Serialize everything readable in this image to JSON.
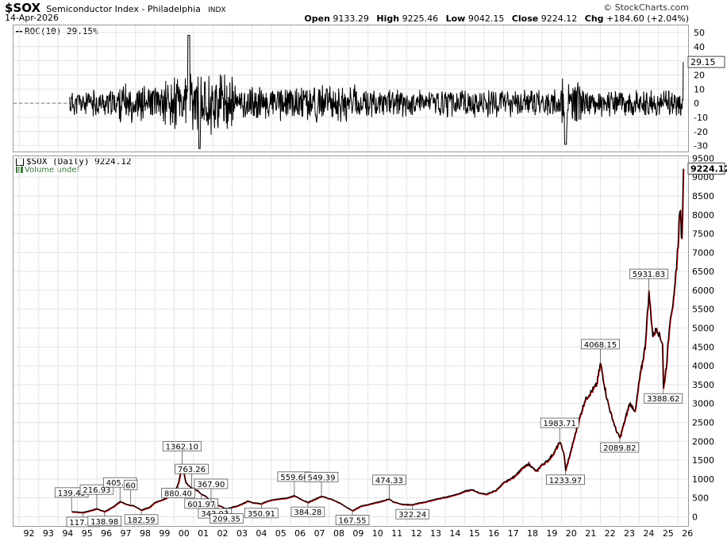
{
  "header": {
    "symbol": "$SOX",
    "name": "Semiconductor Index - Philadelphia",
    "exchange": "INDX",
    "date": "14-Apr-2026",
    "brand": "© StockCharts.com",
    "open_label": "Open",
    "open_value": "9133.29",
    "high_label": "High",
    "high_value": "9225.46",
    "low_label": "Low",
    "low_value": "9042.15",
    "close_label": "Close",
    "close_value": "9224.12",
    "chg_label": "Chg",
    "chg_value": "+184.60 (+2.04%)"
  },
  "roc_panel": {
    "title": "ROC(10) 29.15%",
    "last_label": "29.15"
  },
  "price_panel": {
    "title": "$SOX (Daily) 9224.12",
    "volume_label": "Volume undef",
    "last_label": "9224.12"
  },
  "chart_data": [
    {
      "type": "line",
      "title": "ROC(10) 29.15%",
      "ylim": [
        -33,
        55
      ],
      "yticks": [
        -30,
        -20,
        -10,
        0,
        10,
        20,
        30,
        40,
        50
      ],
      "last_value": 29.15,
      "series": [
        {
          "name": "ROC(10)",
          "approx_range": [
            -32,
            48
          ]
        }
      ]
    },
    {
      "type": "line",
      "title": "$SOX (Daily) 9224.12",
      "xlabel": "",
      "ylabel": "",
      "ylim": [
        -200,
        9550
      ],
      "yticks": [
        0,
        500,
        1000,
        1500,
        2000,
        2500,
        3000,
        3500,
        4000,
        4500,
        5000,
        5500,
        6000,
        6500,
        7000,
        7500,
        8000,
        8500,
        9000,
        9500
      ],
      "xticks": [
        "92",
        "93",
        "94",
        "95",
        "96",
        "97",
        "98",
        "99",
        "00",
        "01",
        "02",
        "03",
        "04",
        "05",
        "06",
        "07",
        "08",
        "09",
        "10",
        "11",
        "12",
        "13",
        "14",
        "15",
        "16",
        "17",
        "18",
        "19",
        "20",
        "21",
        "22",
        "23",
        "24",
        "25",
        "26"
      ],
      "series": [
        {
          "x": [
            1994.7,
            1995.3,
            1995.7,
            1996.0,
            1996.4,
            1996.8,
            1997.2,
            1997.6,
            1997.9,
            1998.3,
            1998.7,
            1999.0,
            1999.4,
            1999.8,
            2000.1,
            2000.2,
            2000.4,
            2000.6,
            2000.9,
            2001.2,
            2001.4,
            2001.7,
            2001.9,
            2002.1,
            2002.4,
            2002.7,
            2002.8,
            2003.3,
            2003.8,
            2004.0,
            2004.5,
            2004.8,
            2005.3,
            2005.8,
            2006.2,
            2006.6,
            2006.9,
            2007.3,
            2007.6,
            2008.2,
            2008.6,
            2008.9,
            2009.2,
            2009.6,
            2010.2,
            2010.6,
            2011.1,
            2011.3,
            2011.8,
            2012.3,
            2012.6,
            2013.0,
            2013.6,
            2014.0,
            2014.6,
            2015.0,
            2015.4,
            2015.7,
            2016.1,
            2016.6,
            2017.0,
            2017.5,
            2018.0,
            2018.3,
            2018.7,
            2018.9,
            2019.3,
            2019.6,
            2019.9,
            2020.1,
            2020.2,
            2020.5,
            2020.8,
            2021.2,
            2021.5,
            2021.8,
            2022.0,
            2022.3,
            2022.5,
            2022.8,
            2023.0,
            2023.5,
            2023.8,
            2024.0,
            2024.3,
            2024.5,
            2024.7,
            2024.9,
            2025.2,
            2025.25,
            2025.4,
            2025.6,
            2025.8,
            2025.9,
            2026.0,
            2026.1,
            2026.2,
            2026.28
          ],
          "y": [
            139.49,
            117.44,
            170,
            216.93,
            138.98,
            250,
            405.48,
            320,
            300,
            182.59,
            250,
            380,
            450,
            550,
            760,
            880.4,
            1362.1,
            900,
            763.26,
            700,
            601.97,
            520,
            367.9,
            343.93,
            280,
            209.35,
            230,
            300,
            420,
            380,
            350.91,
            420,
            470,
            500,
            559.6,
            450,
            384.28,
            480,
            549.39,
            450,
            350,
            250,
            167.55,
            280,
            350,
            400,
            474.33,
            400,
            330,
            322.24,
            360,
            400,
            480,
            520,
            600,
            680,
            720,
            640,
            600,
            700,
            900,
            1050,
            1300,
            1400,
            1200,
            1350,
            1500,
            1700,
            1983.71,
            1700,
            1233.97,
            1800,
            2400,
            3100,
            3300,
            3500,
            4068.15,
            3200,
            2800,
            2300,
            2089.82,
            3000,
            2800,
            3600,
            4500,
            5931.83,
            4800,
            5000,
            4600,
            3388.62,
            4000,
            5300,
            5800,
            6500,
            7200,
            8200,
            7300,
            9224.12
          ]
        }
      ],
      "annotations": [
        {
          "x": 1994.7,
          "y": 139.49,
          "text": "139.49",
          "dir": "up"
        },
        {
          "x": 1995.3,
          "y": 117.44,
          "text": "117.44",
          "dir": "down"
        },
        {
          "x": 1996.0,
          "y": 216.93,
          "text": "216.93",
          "dir": "up"
        },
        {
          "x": 1996.4,
          "y": 138.98,
          "text": "138.98",
          "dir": "down"
        },
        {
          "x": 1997.2,
          "y": 405.48,
          "text": "405.48",
          "dir": "up"
        },
        {
          "x": 1997.75,
          "y": 340,
          "text": "60",
          "dir": "up"
        },
        {
          "x": 1998.3,
          "y": 182.59,
          "text": "182.59",
          "dir": "down"
        },
        {
          "x": 2000.4,
          "y": 1362.1,
          "text": "1362.10",
          "dir": "up"
        },
        {
          "x": 2000.2,
          "y": 880.4,
          "text": "880.40",
          "dir": "down"
        },
        {
          "x": 2000.9,
          "y": 763.26,
          "text": "763.26",
          "dir": "up"
        },
        {
          "x": 2001.4,
          "y": 601.97,
          "text": "601.97",
          "dir": "down"
        },
        {
          "x": 2001.9,
          "y": 367.9,
          "text": "367.90",
          "dir": "up"
        },
        {
          "x": 2002.1,
          "y": 343.93,
          "text": "343.93",
          "dir": "down"
        },
        {
          "x": 2002.7,
          "y": 209.35,
          "text": "209.35",
          "dir": "down"
        },
        {
          "x": 2004.5,
          "y": 350.91,
          "text": "350.91",
          "dir": "down"
        },
        {
          "x": 2006.2,
          "y": 559.6,
          "text": "559.60",
          "dir": "up"
        },
        {
          "x": 2006.9,
          "y": 384.28,
          "text": "384.28",
          "dir": "down"
        },
        {
          "x": 2007.6,
          "y": 549.39,
          "text": "549.39",
          "dir": "up"
        },
        {
          "x": 2009.2,
          "y": 167.55,
          "text": "167.55",
          "dir": "down"
        },
        {
          "x": 2011.1,
          "y": 474.33,
          "text": "474.33",
          "dir": "up"
        },
        {
          "x": 2012.3,
          "y": 322.24,
          "text": "322.24",
          "dir": "down"
        },
        {
          "x": 2019.9,
          "y": 1983.71,
          "text": "1983.71",
          "dir": "up"
        },
        {
          "x": 2020.2,
          "y": 1233.97,
          "text": "1233.97",
          "dir": "down"
        },
        {
          "x": 2022.0,
          "y": 4068.15,
          "text": "4068.15",
          "dir": "up"
        },
        {
          "x": 2023.0,
          "y": 2089.82,
          "text": "2089.82",
          "dir": "down"
        },
        {
          "x": 2024.5,
          "y": 5931.83,
          "text": "5931.83",
          "dir": "up"
        },
        {
          "x": 2025.25,
          "y": 3388.62,
          "text": "3388.62",
          "dir": "down"
        }
      ]
    }
  ],
  "colors": {
    "price_line": "#000000",
    "price_down": "#cc0000",
    "grid": "#e4e4e4",
    "panel_border": "#999999",
    "label_box_border": "#555555",
    "volume_text": "#3a7a3a"
  }
}
